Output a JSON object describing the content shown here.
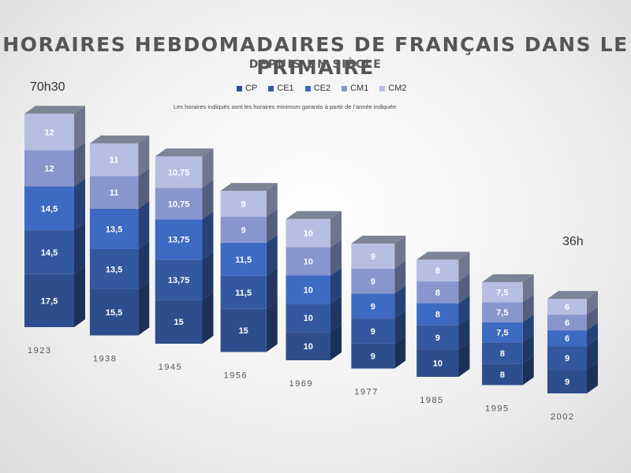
{
  "chart_data": {
    "type": "bar",
    "title": "HORAIRES HEBDOMADAIRES DE FRANÇAIS DANS LE PRIMAIRE",
    "subtitle": "DEPUIS UN SIÈCLE",
    "note": "Les horaires indiqués sont les horaires minimum garantis à partir de l’année indiquée",
    "stacked": true,
    "categories": [
      "1923",
      "1938",
      "1945",
      "1956",
      "1969",
      "1977",
      "1985",
      "1995",
      "2002"
    ],
    "series": [
      {
        "name": "CP",
        "color": "#2e4d8c",
        "values": [
          17.5,
          15.5,
          15,
          15,
          10,
          9,
          10,
          8,
          9
        ],
        "labels": [
          "17,5",
          "15,5",
          "15",
          "15",
          "10",
          "9",
          "10",
          "8",
          "9"
        ]
      },
      {
        "name": "CE1",
        "color": "#34589f",
        "values": [
          14.5,
          13.5,
          13.75,
          11.5,
          10,
          9,
          9,
          8,
          9
        ],
        "labels": [
          "14,5",
          "13,5",
          "13,75",
          "11,5",
          "10",
          "9",
          "9",
          "8",
          "9"
        ]
      },
      {
        "name": "CE2",
        "color": "#3d6ac2",
        "values": [
          14.5,
          13.5,
          13.75,
          11.5,
          10,
          9,
          8,
          7.5,
          6
        ],
        "labels": [
          "14,5",
          "13,5",
          "13,75",
          "11,5",
          "10",
          "9",
          "8",
          "7,5",
          "6"
        ]
      },
      {
        "name": "CM1",
        "color": "#8797cd",
        "values": [
          12,
          11,
          10.75,
          9,
          10,
          9,
          8,
          7.5,
          6
        ],
        "labels": [
          "12",
          "11",
          "10,75",
          "9",
          "10",
          "9",
          "8",
          "7,5",
          "6"
        ]
      },
      {
        "name": "CM2",
        "color": "#b6bfe2",
        "values": [
          12,
          11,
          10.75,
          9,
          10,
          9,
          8,
          7.5,
          6
        ],
        "labels": [
          "12",
          "11",
          "10,75",
          "9",
          "10",
          "9",
          "8",
          "7,5",
          "6"
        ]
      }
    ],
    "annotations": {
      "first_total": "70h30",
      "last_total": "36h"
    },
    "legend_position": "top",
    "grid": false
  }
}
